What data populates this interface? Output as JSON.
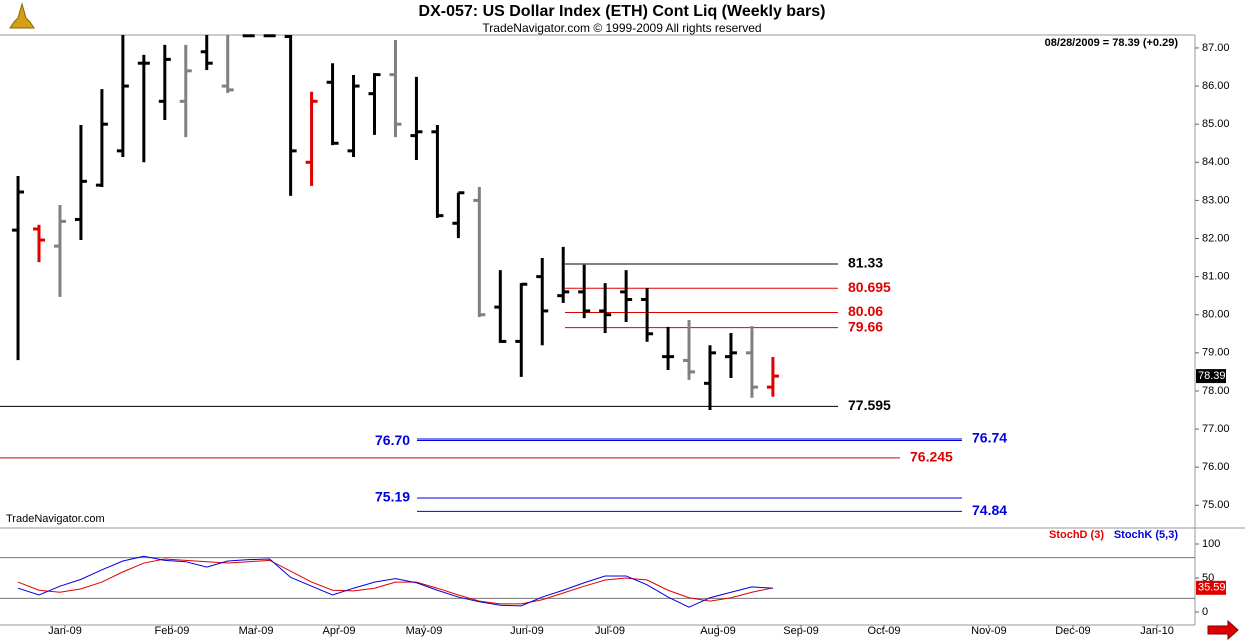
{
  "chart_data": [
    {
      "type": "ohlc",
      "title": "DX-057:  US Dollar Index (ETH) Cont Liq  (Weekly bars)",
      "subtitle": "TradeNavigator.com © 1999-2009 All rights reserved",
      "header_note": "08/28/2009 = 78.39 (+0.29)",
      "watermark": "TradeNavigator.com",
      "xlim": [
        -0.86,
        56.13
      ],
      "ylim": [
        74.43,
        87.34
      ],
      "yticks": [
        {
          "value": 75,
          "label": "75.00"
        },
        {
          "value": 76,
          "label": "76.00"
        },
        {
          "value": 77,
          "label": "77.00"
        },
        {
          "value": 78,
          "label": "78.00"
        },
        {
          "value": 79,
          "label": "79.00"
        },
        {
          "value": 80,
          "label": "80.00"
        },
        {
          "value": 81,
          "label": "81.00"
        },
        {
          "value": 82,
          "label": "82.00"
        },
        {
          "value": 83,
          "label": "83.00"
        },
        {
          "value": 84,
          "label": "84.00"
        },
        {
          "value": 85,
          "label": "85.00"
        },
        {
          "value": 86,
          "label": "86.00"
        },
        {
          "value": 87,
          "label": "87.00"
        }
      ],
      "open": [
        82.22,
        82.25,
        81.8,
        82.5,
        83.4,
        84.3,
        86.6,
        85.6,
        85.6,
        86.9,
        86.0,
        87.32,
        87.32,
        87.3,
        84.0,
        86.1,
        84.3,
        85.8,
        86.3,
        84.7,
        84.8,
        82.4,
        83.0,
        80.2,
        79.3,
        81.0,
        80.5,
        80.6,
        80.1,
        80.6,
        80.4,
        78.9,
        78.8,
        78.2,
        78.9,
        79.0,
        78.1
      ],
      "high": [
        83.64,
        82.36,
        82.88,
        84.98,
        85.92,
        87.34,
        86.82,
        87.08,
        87.08,
        87.34,
        87.34,
        87.34,
        87.34,
        87.34,
        85.85,
        86.6,
        86.29,
        86.34,
        87.21,
        86.24,
        84.98,
        83.2,
        83.35,
        81.17,
        80.83,
        81.49,
        81.78,
        81.31,
        80.83,
        81.17,
        80.7,
        79.68,
        79.86,
        79.2,
        79.52,
        79.7,
        78.89
      ],
      "low": [
        78.81,
        81.38,
        80.47,
        81.96,
        83.35,
        84.14,
        84.0,
        85.11,
        84.66,
        86.42,
        85.82,
        87.3,
        87.3,
        83.12,
        83.38,
        84.45,
        84.14,
        84.72,
        84.66,
        84.06,
        82.54,
        82.01,
        79.94,
        79.26,
        78.37,
        79.2,
        80.31,
        79.91,
        79.52,
        79.81,
        79.29,
        78.55,
        78.29,
        77.5,
        78.34,
        77.82,
        77.85
      ],
      "close": [
        83.22,
        81.96,
        82.45,
        83.5,
        85.0,
        86.0,
        86.6,
        86.7,
        86.4,
        86.6,
        85.9,
        87.32,
        87.32,
        84.3,
        85.6,
        84.5,
        86.0,
        86.3,
        85.0,
        84.8,
        82.6,
        83.2,
        80.0,
        79.3,
        80.8,
        80.1,
        80.6,
        80.1,
        80.0,
        80.4,
        79.5,
        78.9,
        78.5,
        79.0,
        79.0,
        78.1,
        78.39
      ],
      "colors": [
        "#000000",
        "#e00000",
        "#808080",
        "#000000",
        "#000000",
        "#000000",
        "#000000",
        "#000000",
        "#808080",
        "#000000",
        "#808080",
        "#000000",
        "#000000",
        "#000000",
        "#e00000",
        "#000000",
        "#000000",
        "#000000",
        "#808080",
        "#000000",
        "#000000",
        "#000000",
        "#808080",
        "#000000",
        "#000000",
        "#000000",
        "#000000",
        "#000000",
        "#000000",
        "#000000",
        "#000000",
        "#000000",
        "#808080",
        "#000000",
        "#000000",
        "#808080",
        "#e00000"
      ],
      "last_value": 78.39,
      "levels": {
        "values": [
          81.33,
          80.695,
          80.06,
          79.66,
          77.595,
          76.74,
          76.7,
          76.245,
          75.19,
          74.84
        ],
        "value_labels": [
          "81.33",
          "80.695",
          "80.06",
          "79.66",
          "77.595",
          "76.74",
          "76.70",
          "76.245",
          "75.19",
          "74.84"
        ],
        "colors": [
          "#000000",
          "#e00000",
          "#e00000",
          "#e00000",
          "#000000",
          "#0000e0",
          "#0000e0",
          "#e00000",
          "#0000e0",
          "#0000e0"
        ]
      }
    },
    {
      "type": "line",
      "xlim": [
        -0.86,
        56.13
      ],
      "xticks": [
        {
          "value": 2.24,
          "label": "Jan-09"
        },
        {
          "value": 7.34,
          "label": "Feb-09"
        },
        {
          "value": 11.35,
          "label": "Mar-09"
        },
        {
          "value": 15.31,
          "label": "Apr-09"
        },
        {
          "value": 19.36,
          "label": "May-09"
        },
        {
          "value": 24.27,
          "label": "Jun-09"
        },
        {
          "value": 28.23,
          "label": "Jul-09"
        },
        {
          "value": 33.38,
          "label": "Aug-09"
        },
        {
          "value": 37.34,
          "label": "Sep-09"
        },
        {
          "value": 41.3,
          "label": "Oct-09"
        },
        {
          "value": 46.3,
          "label": "Nov-09"
        },
        {
          "value": 50.31,
          "label": "Dec-09"
        },
        {
          "value": 54.32,
          "label": "Jan-10"
        }
      ],
      "ylim": [
        -19.1,
        120.6
      ],
      "yticks": [
        0,
        50,
        100
      ],
      "levels": [
        80,
        20
      ],
      "series": [
        {
          "name": "StochD (3)",
          "color": "#e00000",
          "values": [
            44,
            32,
            29,
            34,
            44,
            59,
            72,
            78,
            76,
            74,
            72,
            74,
            76,
            60,
            44,
            32,
            31,
            35,
            44,
            44,
            35,
            25,
            16,
            12,
            12,
            18,
            28,
            38,
            47,
            50,
            47,
            32,
            21,
            16,
            21,
            29,
            35.59
          ]
        },
        {
          "name": "StochK (5,3)",
          "color": "#0000e0",
          "values": [
            35,
            25,
            38,
            48,
            62,
            75,
            82,
            76,
            74,
            66,
            75,
            77,
            78,
            51,
            38,
            25,
            35,
            44,
            49,
            43,
            32,
            22,
            15,
            10,
            9,
            22,
            32,
            43,
            53,
            53,
            40,
            22,
            7,
            21,
            29,
            37,
            35
          ]
        }
      ],
      "last_value": 35.59
    }
  ]
}
